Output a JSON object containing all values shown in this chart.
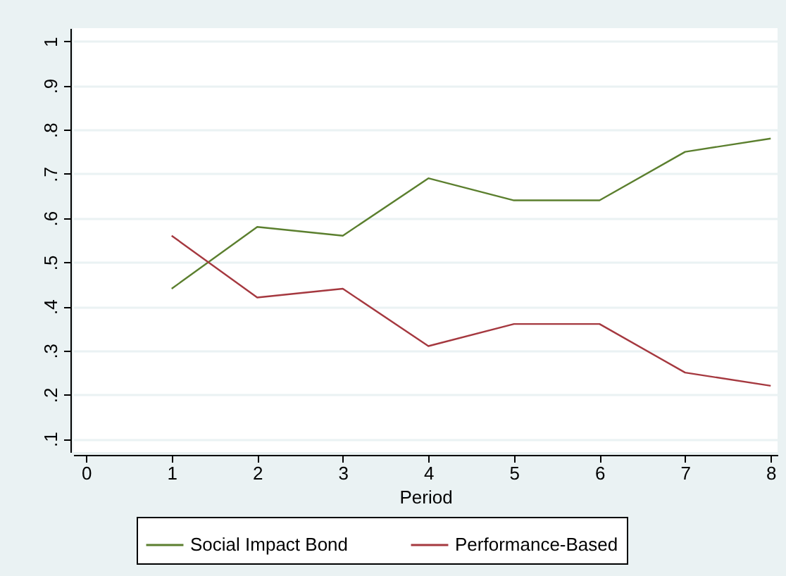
{
  "chart_data": {
    "type": "line",
    "xlabel": "Period",
    "x": [
      1,
      2,
      3,
      4,
      5,
      6,
      7,
      8
    ],
    "series": [
      {
        "name": "Social Impact Bond",
        "color": "#5b7f2e",
        "values": [
          0.44,
          0.58,
          0.56,
          0.69,
          0.64,
          0.64,
          0.75,
          0.78
        ]
      },
      {
        "name": "Performance-Based",
        "color": "#a5383f",
        "values": [
          0.56,
          0.42,
          0.44,
          0.31,
          0.36,
          0.36,
          0.25,
          0.22
        ]
      }
    ],
    "xlim": [
      -0.15,
      8.08
    ],
    "xticks": [
      0,
      1,
      2,
      3,
      4,
      5,
      6,
      7,
      8
    ],
    "ylim": [
      0.07,
      1.03
    ],
    "yticks": [
      {
        "value": 0.1,
        "label": ".1"
      },
      {
        "value": 0.2,
        "label": ".2"
      },
      {
        "value": 0.3,
        "label": ".3"
      },
      {
        "value": 0.4,
        "label": ".4"
      },
      {
        "value": 0.5,
        "label": ".5"
      },
      {
        "value": 0.6,
        "label": ".6"
      },
      {
        "value": 0.7,
        "label": ".7"
      },
      {
        "value": 0.8,
        "label": ".8"
      },
      {
        "value": 0.9,
        "label": ".9"
      },
      {
        "value": 1,
        "label": "1"
      }
    ],
    "grid": "y",
    "legend": "bottom",
    "marker": "none",
    "line_style": "solid"
  }
}
